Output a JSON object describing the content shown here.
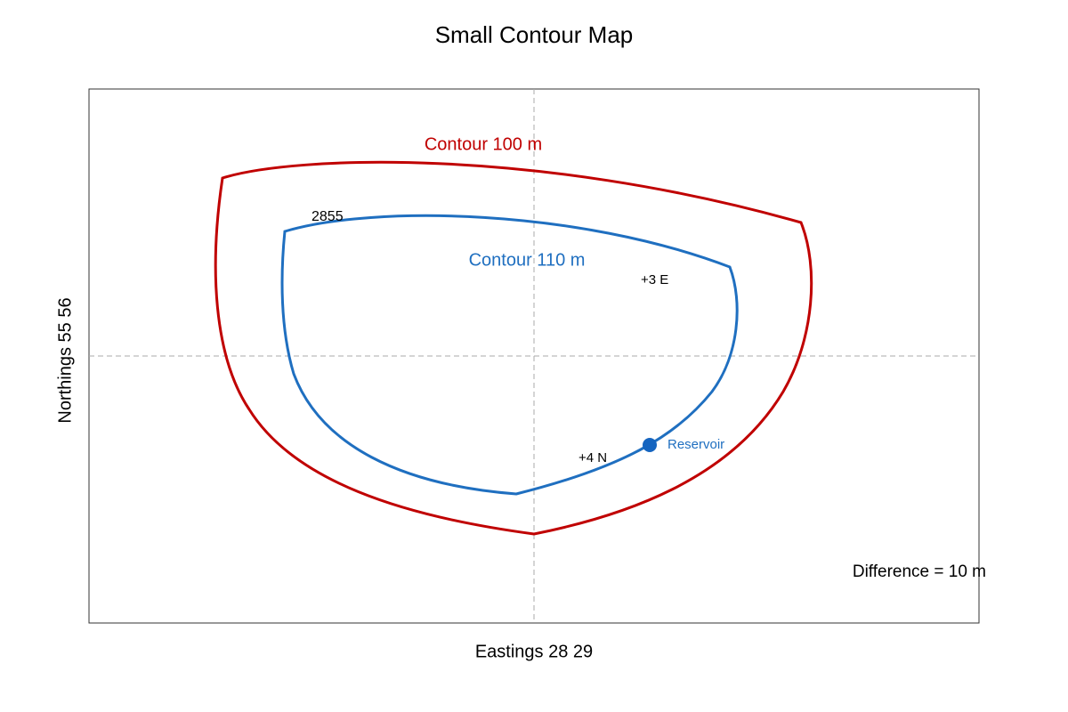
{
  "header": {
    "title": "Small Contour Map"
  },
  "axes": {
    "x_label": "Eastings 28 29",
    "y_label": "Northings 55 56"
  },
  "contours": [
    {
      "label": "Contour 100 m"
    },
    {
      "label": "Contour 110 m"
    }
  ],
  "annotations": {
    "grid_ref": "2855",
    "east_offset": "+3 E",
    "north_offset": "+4 N",
    "point": "Reservoir",
    "difference": "Difference = 10 m"
  }
}
